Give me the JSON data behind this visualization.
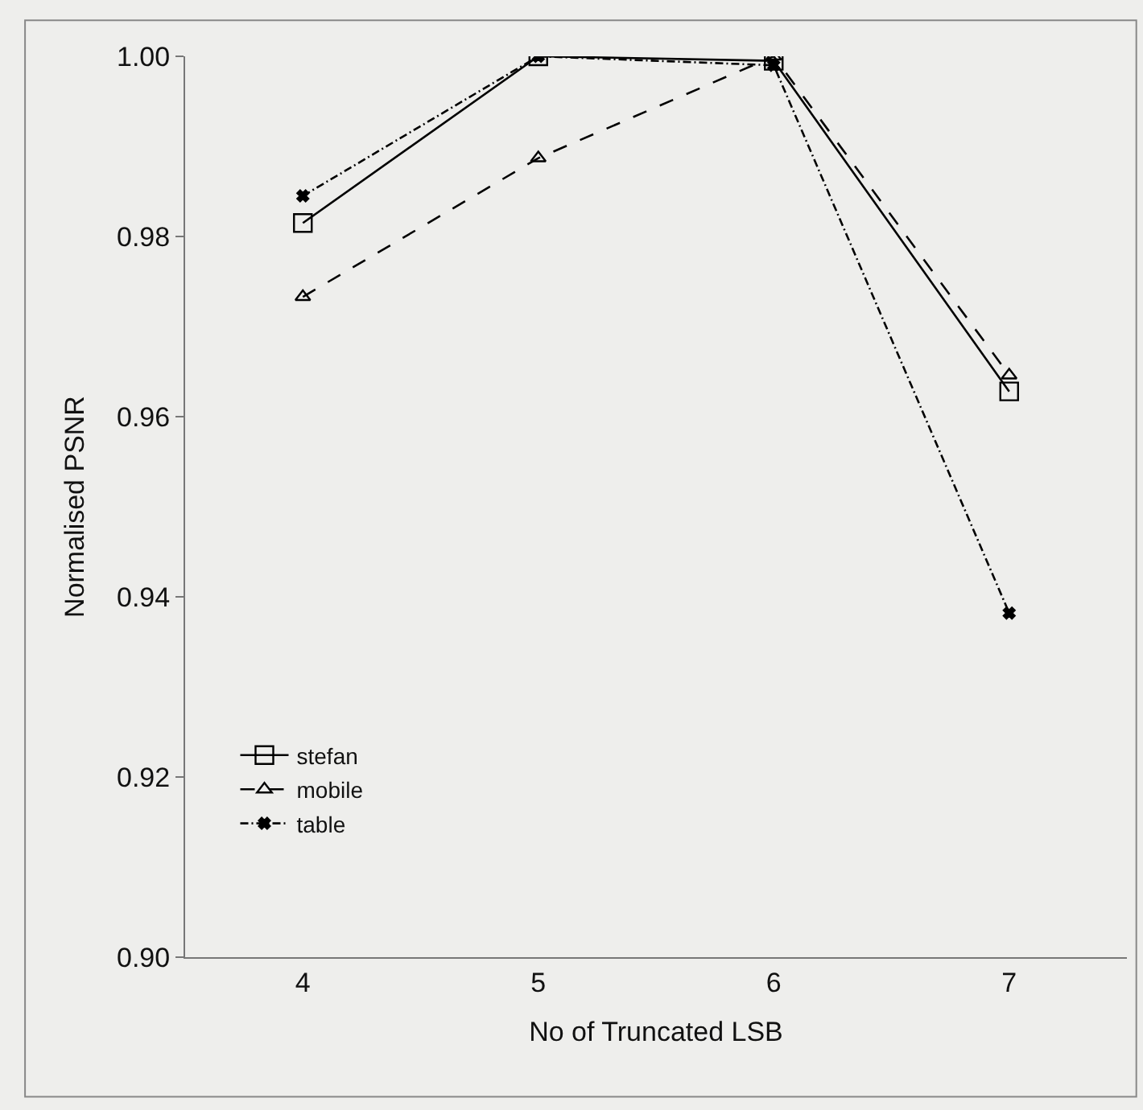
{
  "chart_data": {
    "type": "line",
    "xlabel": "No of Truncated LSB",
    "ylabel": "Normalised PSNR",
    "categories": [
      "4",
      "5",
      "6",
      "7"
    ],
    "series": [
      {
        "name": "stefan",
        "color": "#000000",
        "values": [
          0.9815,
          1.0,
          0.9995,
          0.9628
        ],
        "marker": "square",
        "line_style": "solid"
      },
      {
        "name": "mobile",
        "color": "#000000",
        "values": [
          0.9733,
          0.9887,
          1.0,
          0.9646
        ],
        "marker": "triangle",
        "line_style": "dashed"
      },
      {
        "name": "table",
        "color": "#000000",
        "values": [
          0.9845,
          1.0,
          0.999,
          0.9382
        ],
        "marker": "cross",
        "line_style": "dashdot"
      }
    ],
    "ylim": [
      0.9,
      1.0
    ],
    "yticks": [
      {
        "value": 0.9,
        "label": "0.90"
      },
      0.92,
      0.94,
      0.96,
      0.98,
      {
        "value": 1.0,
        "label": "1.00"
      }
    ],
    "grid": false,
    "legend": "bottom left"
  }
}
